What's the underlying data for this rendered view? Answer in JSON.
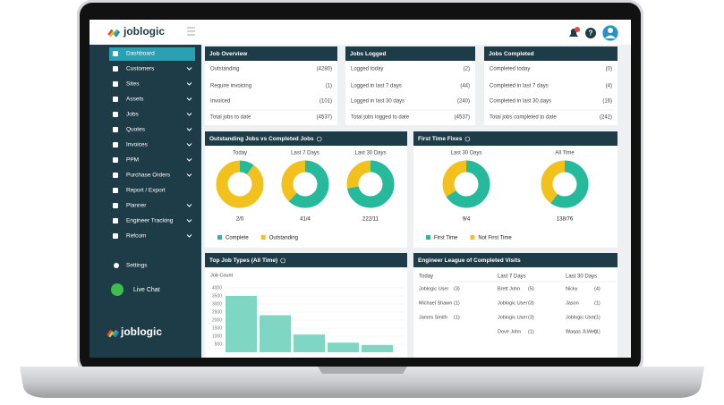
{
  "header": {
    "logo": "joblogic"
  },
  "sidebar": {
    "items": [
      "Dashboard",
      "Customers",
      "Sites",
      "Assets",
      "Jobs",
      "Quotes",
      "Invoices",
      "PPM",
      "Purchase Orders",
      "Report / Export",
      "Planner",
      "Engineer Tracking",
      "Refcom"
    ],
    "settings": "Settings",
    "live_chat": "Live Chat",
    "logo": "joblogic"
  },
  "cards": [
    {
      "title": "Job Overview",
      "rows": [
        [
          "Outstanding",
          "(4280)"
        ],
        [
          "Require invoicing",
          "(1)"
        ],
        [
          "Invoiced",
          "(101)"
        ],
        [
          "Total jobs to date",
          "(4537)"
        ]
      ]
    },
    {
      "title": "Jobs Logged",
      "rows": [
        [
          "Logged today",
          "(2)"
        ],
        [
          "Logged in last 7 days",
          "(44)"
        ],
        [
          "Logged in last 30 days",
          "(240)"
        ],
        [
          "Total jobs logged to date",
          "(4537)"
        ]
      ]
    },
    {
      "title": "Jobs Completed",
      "rows": [
        [
          "Completed today",
          "(0)"
        ],
        [
          "Completed in last 7 days",
          "(4)"
        ],
        [
          "Completed in last 30 days",
          "(16)"
        ],
        [
          "Total jobs completed to date",
          "(242)"
        ]
      ]
    }
  ],
  "outstanding_vs_completed": {
    "title": "Outstanding Jobs vs Completed Jobs",
    "legend": [
      "Complete",
      "Outstanding"
    ],
    "colors": [
      "#26b99b",
      "#f3c11c"
    ],
    "periods": [
      {
        "name": "Today",
        "label": "2/0",
        "values": [
          10,
          90
        ]
      },
      {
        "name": "Last 7 Days",
        "label": "41/4",
        "values": [
          62,
          38
        ]
      },
      {
        "name": "Last 30 Days",
        "label": "222/11",
        "values": [
          72,
          28
        ]
      }
    ]
  },
  "first_time_fixes": {
    "title": "First Time Fixes",
    "legend": [
      "First Time",
      "Not First Time"
    ],
    "colors": [
      "#26b99b",
      "#f3c11c"
    ],
    "periods": [
      {
        "name": "Last 30 Days",
        "label": "9/4",
        "values": [
          66,
          34
        ]
      },
      {
        "name": "All Time",
        "label": "138/76",
        "values": [
          60,
          40
        ]
      }
    ]
  },
  "top_job_types": {
    "title": "Top Job Types (All Time)",
    "axis_label": "Job Count",
    "color": "#7fd6c2",
    "ylim": [
      0,
      4000
    ],
    "yticks": [
      4000,
      3500,
      3000,
      2500,
      2000,
      1500,
      1000,
      500
    ],
    "values": [
      3500,
      2300,
      1100,
      600,
      450
    ]
  },
  "engineer_league": {
    "title": "Engineer League of Completed Visits",
    "columns": [
      "Today",
      "Last 7 Days",
      "Last 30 Days"
    ],
    "rows": [
      [
        [
          "Joblogic User",
          "(3)"
        ],
        [
          "Brett John",
          "(5)"
        ],
        [
          "Nicky",
          "(4)"
        ]
      ],
      [
        [
          "Michael Shawn",
          "(1)"
        ],
        [
          "Joblogic User",
          "(3)"
        ],
        [
          "Jason",
          "(1)"
        ]
      ],
      [
        [
          "James Smith",
          "(1)"
        ],
        [
          "Joblogic User",
          "(3)"
        ],
        [
          "Joblogic User",
          "(1)"
        ]
      ],
      [
        null,
        [
          "Dove John",
          "(1)"
        ],
        [
          "Waqas JLWeb",
          "(1)"
        ]
      ]
    ]
  }
}
